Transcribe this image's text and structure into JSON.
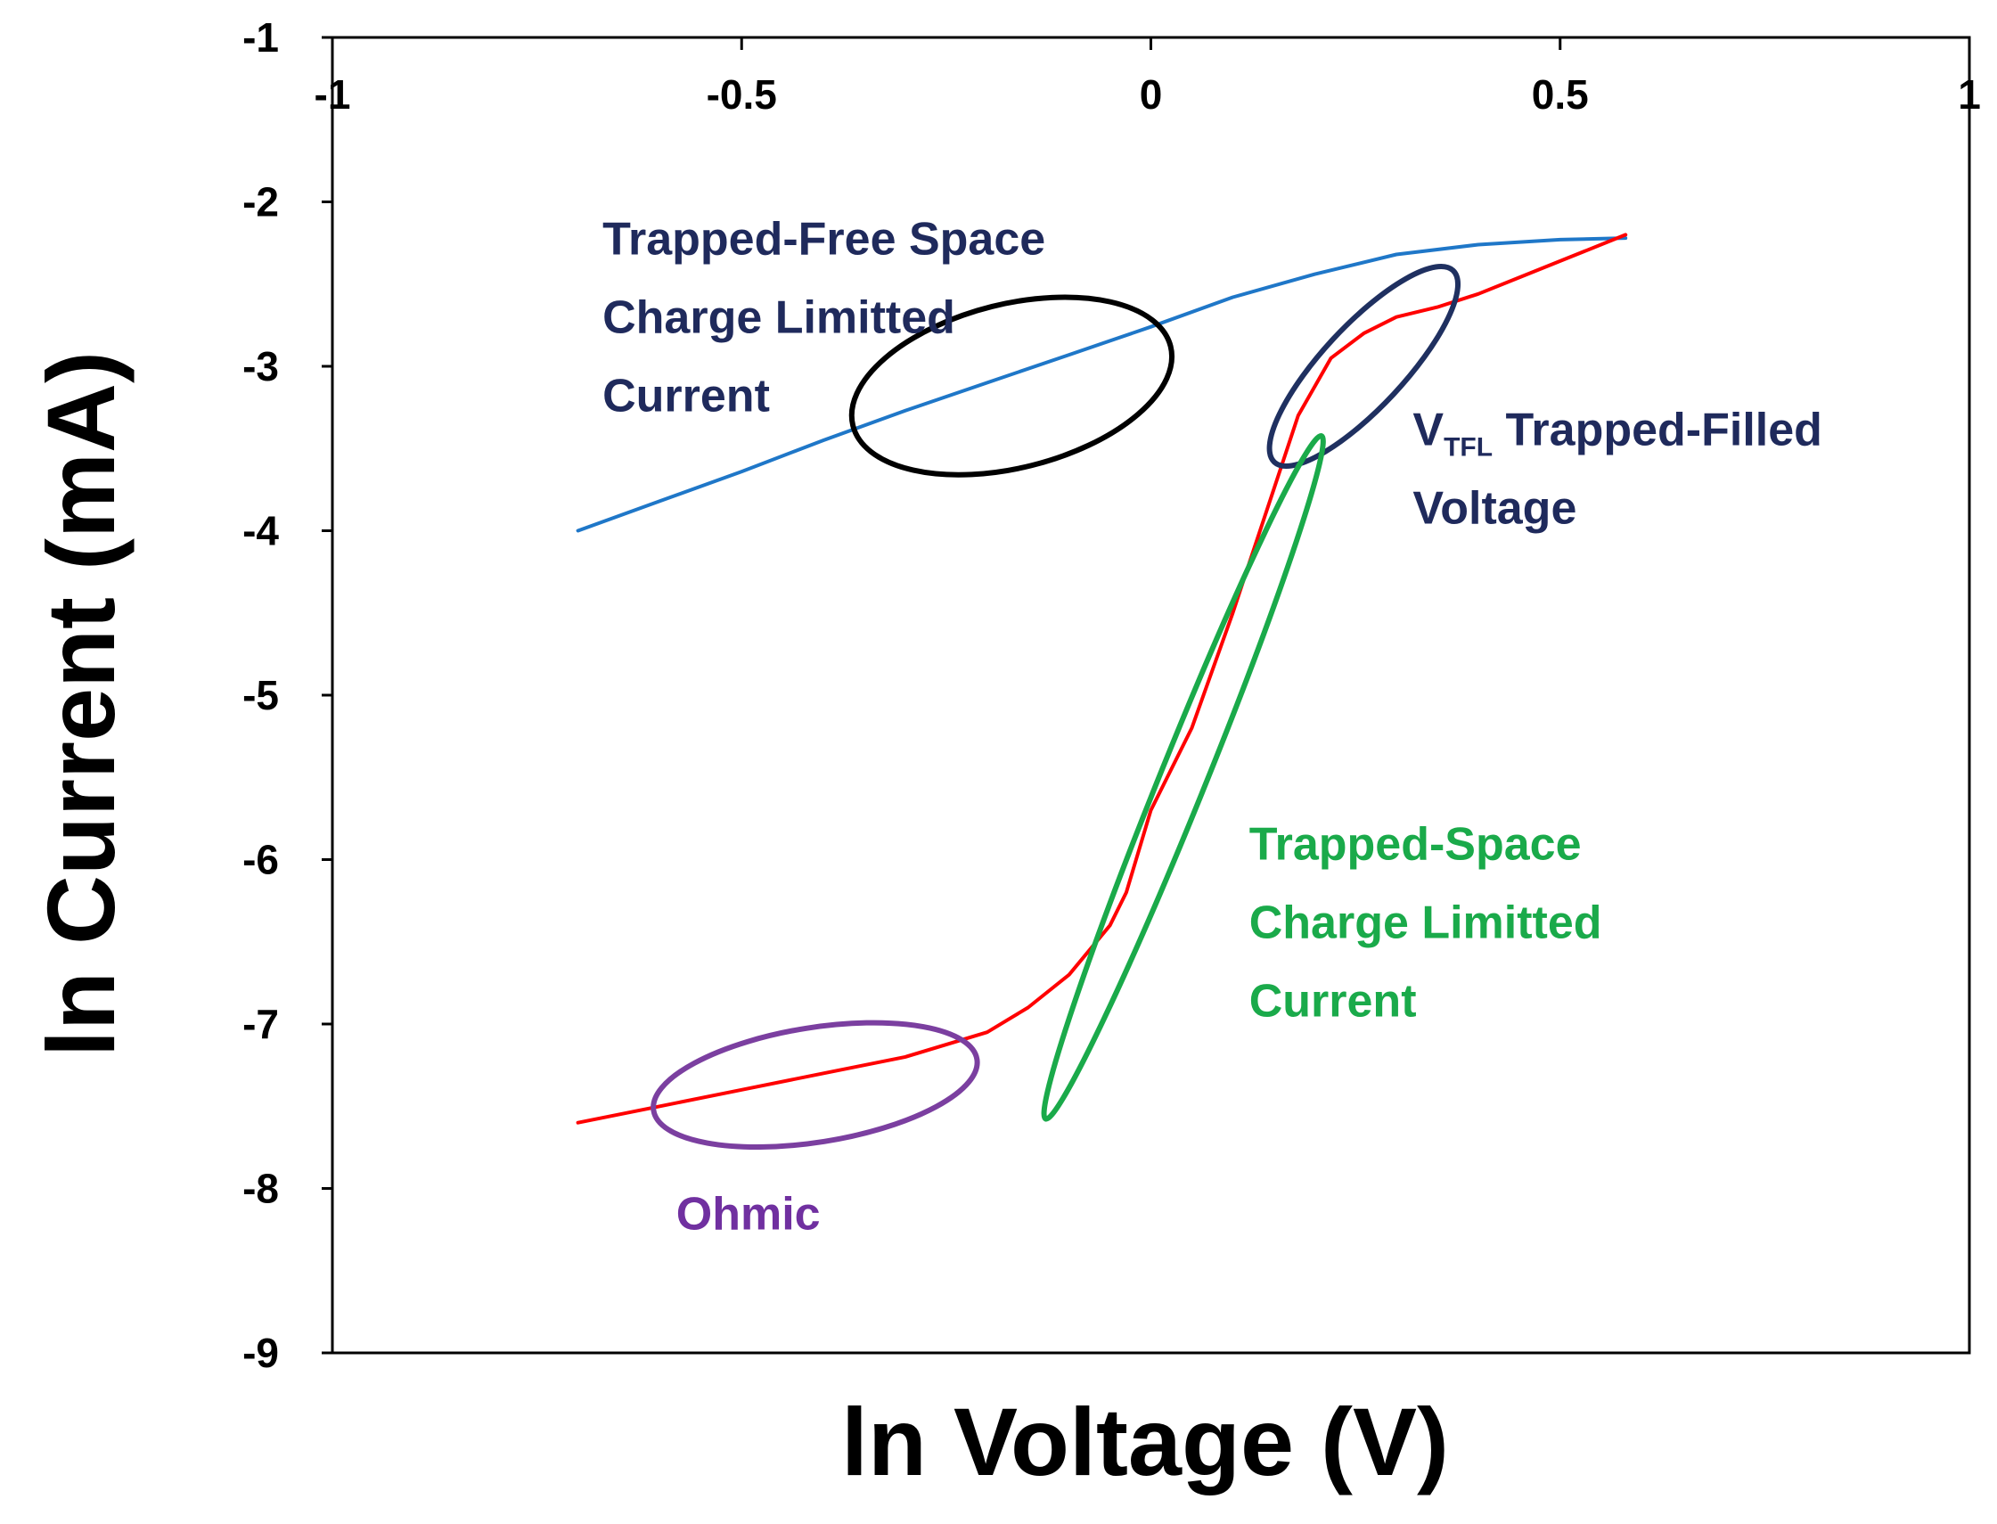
{
  "chart_data": {
    "type": "line",
    "title": "",
    "xlabel": "ln Voltage (V)",
    "ylabel": "ln Current (mA)",
    "xlim": [
      -1,
      1
    ],
    "ylim": [
      -9,
      -1
    ],
    "x_ticks": [
      -1,
      -0.5,
      0,
      0.5,
      1
    ],
    "x_tick_labels": [
      "-1",
      "-0.5",
      "0",
      "0.5",
      "1"
    ],
    "y_ticks": [
      -1,
      -2,
      -3,
      -4,
      -5,
      -6,
      -7,
      -8,
      -9
    ],
    "y_tick_labels": [
      "-1",
      "-2",
      "-3",
      "-4",
      "-5",
      "-6",
      "-7",
      "-8",
      "-9"
    ],
    "grid": false,
    "legend": "none",
    "colors": {
      "blue_curve": "#1f77c8",
      "red_curve": "#ff0000",
      "ellipse_tfsclc": "#000000",
      "ellipse_vtfl": "#1f3060",
      "ellipse_tsclc": "#1aaa4a",
      "ellipse_ohmic": "#7b3fa0",
      "text_navy": "#1f2a5c",
      "text_green": "#1aaa4a",
      "text_purple": "#7030a0"
    },
    "series": [
      {
        "name": "blue",
        "color": "#1f77c8",
        "x": [
          -0.7,
          -0.6,
          -0.5,
          -0.4,
          -0.3,
          -0.2,
          -0.1,
          0.0,
          0.1,
          0.2,
          0.3,
          0.4,
          0.5,
          0.58
        ],
        "y": [
          -4.0,
          -3.82,
          -3.64,
          -3.45,
          -3.27,
          -3.1,
          -2.93,
          -2.76,
          -2.58,
          -2.44,
          -2.32,
          -2.26,
          -2.23,
          -2.22
        ]
      },
      {
        "name": "red",
        "color": "#ff0000",
        "x": [
          -0.7,
          -0.6,
          -0.5,
          -0.4,
          -0.3,
          -0.2,
          -0.15,
          -0.1,
          -0.05,
          -0.03,
          0.0,
          0.05,
          0.1,
          0.12,
          0.15,
          0.18,
          0.22,
          0.26,
          0.3,
          0.35,
          0.4,
          0.45,
          0.5,
          0.58
        ],
        "y": [
          -7.6,
          -7.5,
          -7.4,
          -7.3,
          -7.2,
          -7.05,
          -6.9,
          -6.7,
          -6.4,
          -6.2,
          -5.7,
          -5.2,
          -4.5,
          -4.2,
          -3.75,
          -3.3,
          -2.95,
          -2.8,
          -2.7,
          -2.64,
          -2.56,
          -2.46,
          -2.36,
          -2.2
        ]
      }
    ],
    "ellipses": [
      {
        "name": "tfsclc",
        "color": "#000000",
        "cx": -0.17,
        "cy": -3.12,
        "rx": 0.2,
        "ry": 0.1,
        "angle": -14
      },
      {
        "name": "vtfl",
        "color": "#1f3060",
        "cx": 0.26,
        "cy": -3.0,
        "rx": 0.16,
        "ry": 0.05,
        "angle": -47
      },
      {
        "name": "tsclc",
        "color": "#1aaa4a",
        "cx": 0.04,
        "cy": -5.5,
        "rx": 0.45,
        "ry": 0.028,
        "angle": -68
      },
      {
        "name": "ohmic",
        "color": "#7b3fa0",
        "cx": -0.41,
        "cy": -7.37,
        "rx": 0.2,
        "ry": 0.07,
        "angle": -9
      }
    ],
    "annotations": [
      {
        "name": "annotation-tfsclc",
        "lines": [
          "Trapped-Free Space",
          "Charge Limitted",
          "Current"
        ],
        "color": "#1f2a5c",
        "x": -0.67,
        "y": -2.32
      },
      {
        "name": "annotation-vtfl",
        "lines": [
          "V",
          "TFL",
          " Trapped-Filled",
          "Voltage"
        ],
        "color": "#1f2a5c",
        "x": 0.32,
        "y": -3.48
      },
      {
        "name": "annotation-tsclc",
        "lines": [
          "Trapped-Space",
          "Charge Limitted",
          "Current"
        ],
        "color": "#1aaa4a",
        "x": 0.12,
        "y": -6.0
      },
      {
        "name": "annotation-ohmic",
        "lines": [
          "Ohmic"
        ],
        "color": "#7030a0",
        "x": -0.58,
        "y": -8.25
      }
    ]
  }
}
